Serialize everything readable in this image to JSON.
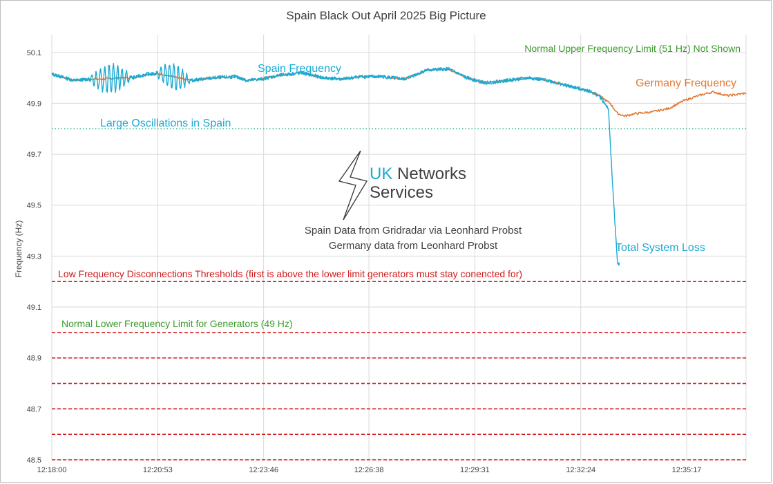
{
  "chart_data": {
    "type": "line",
    "title": "Spain Black Out April 2025 Big Picture",
    "xlabel": "",
    "ylabel": "Frequency (Hz)",
    "ylim": [
      48.5,
      50.17
    ],
    "y_ticks": [
      "50.1",
      "49.9",
      "49.7",
      "49.5",
      "49.3",
      "49.1",
      "48.9",
      "48.7",
      "48.5"
    ],
    "y_tick_values": [
      50.1,
      49.9,
      49.7,
      49.5,
      49.3,
      49.1,
      48.9,
      48.7,
      48.5
    ],
    "x_ticks": [
      "12:18:00",
      "12:20:53",
      "12:23:46",
      "12:26:38",
      "12:29:31",
      "12:32:24",
      "12:35:17"
    ],
    "x_range_minutes": [
      0,
      18.9
    ],
    "grid": true,
    "series": [
      {
        "name": "Spain Frequency",
        "color": "#1aaad4",
        "x_minutes": [
          0,
          0.6,
          1.0,
          1.4,
          1.8,
          2.2,
          2.6,
          3.0,
          3.4,
          3.8,
          4.4,
          5.0,
          5.3,
          5.7,
          6.2,
          6.8,
          7.4,
          7.9,
          8.4,
          9.0,
          9.6,
          10.2,
          10.8,
          11.3,
          11.8,
          12.4,
          13.0,
          13.5,
          14.0,
          14.6,
          14.9,
          15.15,
          15.3,
          15.4,
          15.45
        ],
        "values": [
          50.015,
          49.99,
          49.995,
          49.995,
          50.0,
          50.0,
          50.015,
          50.015,
          50.0,
          49.99,
          50.0,
          50.005,
          49.99,
          49.995,
          50.01,
          50.02,
          50.0,
          49.995,
          50.005,
          50.005,
          49.995,
          50.03,
          50.035,
          50.0,
          49.98,
          49.99,
          50.0,
          49.99,
          49.97,
          49.95,
          49.93,
          49.88,
          49.5,
          49.27,
          49.27
        ],
        "oscillations": [
          {
            "center_minutes": 1.6,
            "span_minutes": 1.2,
            "amplitude_hz": 0.055
          },
          {
            "center_minutes": 3.3,
            "span_minutes": 1.0,
            "amplitude_hz": 0.05
          }
        ]
      },
      {
        "name": "Germany Frequency",
        "color": "#e07a35",
        "x_minutes": [
          0,
          0.6,
          1.0,
          1.4,
          1.8,
          2.2,
          2.6,
          3.0,
          3.4,
          3.8,
          4.4,
          5.0,
          5.3,
          5.7,
          6.2,
          6.8,
          7.4,
          7.9,
          8.4,
          9.0,
          9.6,
          10.2,
          10.8,
          11.3,
          11.8,
          12.4,
          13.0,
          13.5,
          14.0,
          14.6,
          14.9,
          15.2,
          15.4,
          15.6,
          15.9,
          16.3,
          16.8,
          17.2,
          17.6,
          18.0,
          18.4,
          18.9
        ],
        "values": [
          50.015,
          49.99,
          49.995,
          49.995,
          50.0,
          50.0,
          50.015,
          50.015,
          50.0,
          49.99,
          50.0,
          50.005,
          49.99,
          49.995,
          50.01,
          50.02,
          50.0,
          49.995,
          50.005,
          50.005,
          49.995,
          50.03,
          50.035,
          50.0,
          49.98,
          49.99,
          50.0,
          49.99,
          49.97,
          49.95,
          49.93,
          49.9,
          49.86,
          49.85,
          49.86,
          49.865,
          49.88,
          49.91,
          49.93,
          49.945,
          49.93,
          49.94
        ]
      }
    ],
    "reference_lines": [
      {
        "value": 49.8,
        "style": "dotted",
        "color": "#1aa88f"
      },
      {
        "value": 49.2,
        "style": "dashed",
        "color": "#d01818"
      },
      {
        "value": 49.0,
        "style": "dashed",
        "color": "#d01818"
      },
      {
        "value": 48.9,
        "style": "dashed",
        "color": "#d01818"
      },
      {
        "value": 48.8,
        "style": "dashed",
        "color": "#d01818"
      },
      {
        "value": 48.7,
        "style": "dashed",
        "color": "#d01818"
      },
      {
        "value": 48.6,
        "style": "dashed",
        "color": "#d01818"
      },
      {
        "value": 48.5,
        "style": "dashed",
        "color": "#d01818"
      }
    ],
    "annotations": {
      "upper_limit": "Normal Upper Frequency Limit  (51 Hz)  Not Shown",
      "spain_label": "Spain Frequency",
      "germany_label": "Germany Frequency",
      "oscillations": "Large Oscillations in Spain",
      "total_loss": "Total System Loss",
      "low_freq": "Low Frequency Disconnections Thresholds (first is above the lower limit generators must stay conencted for)",
      "lower_limit": "Normal Lower Frequency Limit for Generators (49 Hz)",
      "source_line1": "Spain Data from Gridradar via Leonhard Probst",
      "source_line2": "Germany data from Leonhard Probst"
    },
    "logo": {
      "word1": "UK",
      "word2": "Networks",
      "word3": "Services"
    },
    "colors": {
      "spain": "#1aaad4",
      "germany": "#e07a35",
      "green": "#3a9a2a",
      "red": "#d01818",
      "grid": "#d9d9d9"
    }
  }
}
